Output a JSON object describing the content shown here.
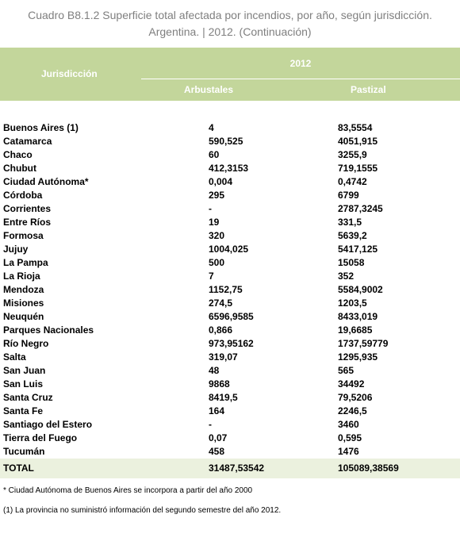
{
  "title": [
    "Cuadro B8.1.2 Superficie total afectada por incendios, por año, según jurisdicción.",
    "Argentina. | 2012. (Continuación)"
  ],
  "table": {
    "header": {
      "jurisdiction": "Jurisdicción",
      "year": "2012",
      "columns": [
        "Arbustales",
        "Pastizal"
      ]
    },
    "rows": [
      [
        "Buenos Aires (1)",
        "4",
        "83,5554"
      ],
      [
        "Catamarca",
        "590,525",
        "4051,915"
      ],
      [
        "Chaco",
        "60",
        "3255,9"
      ],
      [
        "Chubut",
        "412,3153",
        "719,1555"
      ],
      [
        "Ciudad Autónoma*",
        "0,004",
        "0,4742"
      ],
      [
        "Córdoba",
        "295",
        "6799"
      ],
      [
        "Corrientes",
        "-",
        "2787,3245"
      ],
      [
        "Entre Ríos",
        "19",
        "331,5"
      ],
      [
        "Formosa",
        "320",
        "5639,2"
      ],
      [
        "Jujuy",
        "1004,025",
        "5417,125"
      ],
      [
        "La Pampa",
        "500",
        "15058"
      ],
      [
        "La Rioja",
        "7",
        "352"
      ],
      [
        "Mendoza",
        "1152,75",
        "5584,9002"
      ],
      [
        "Misiones",
        "274,5",
        "1203,5"
      ],
      [
        "Neuquén",
        "6596,9585",
        "8433,019"
      ],
      [
        "Parques Nacionales",
        "0,866",
        "19,6685"
      ],
      [
        "Río Negro",
        "973,95162",
        "1737,59779"
      ],
      [
        "Salta",
        "319,07",
        "1295,935"
      ],
      [
        "San Juan",
        "48",
        "565"
      ],
      [
        "San Luis",
        "9868",
        "34492"
      ],
      [
        "Santa Cruz",
        "8419,5",
        "79,5206"
      ],
      [
        "Santa Fe",
        "164",
        "2246,5"
      ],
      [
        "Santiago del Estero",
        "-",
        "3460"
      ],
      [
        "Tierra del Fuego",
        "0,07",
        "0,595"
      ],
      [
        "Tucumán",
        "458",
        "1476"
      ]
    ],
    "total": [
      "TOTAL",
      "31487,53542",
      "105089,38569"
    ]
  },
  "notes": [
    "* Ciudad Autónoma de Buenos Aires se incorpora a partir del año 2000",
    "(1) La provincia no suministró información del segundo semestre del año 2012."
  ]
}
